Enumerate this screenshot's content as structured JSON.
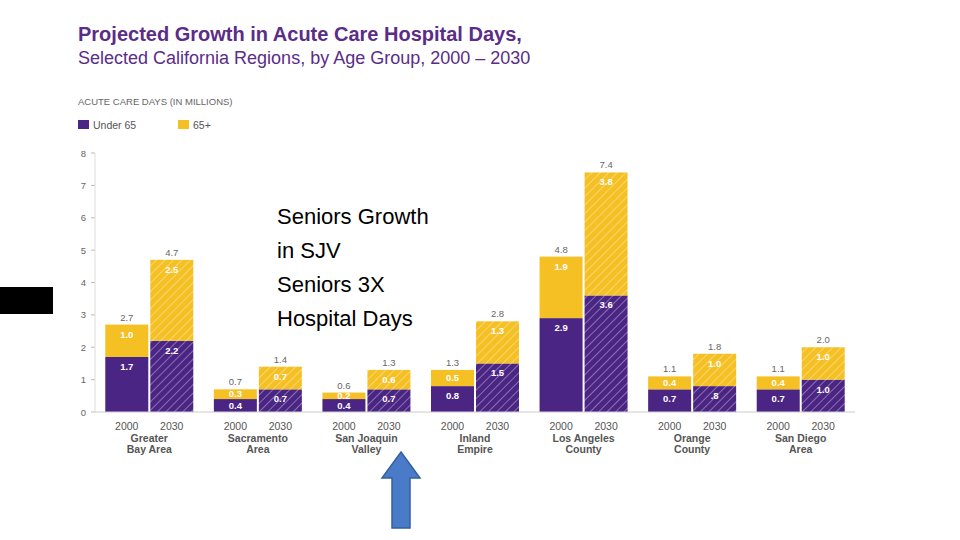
{
  "chart_data": {
    "type": "bar",
    "title": "Projected Growth in Acute Care Hospital Days,",
    "subtitle": "Selected California Regions, by Age Group, 2000 – 2030",
    "y_label": "ACUTE CARE DAYS (IN MILLIONS)",
    "categories": [
      "2000",
      "2030",
      "2000",
      "2030",
      "2000",
      "2030",
      "2000",
      "2030",
      "2000",
      "2030",
      "2000",
      "2030",
      "2000",
      "2030"
    ],
    "group_labels": [
      [
        "Greater",
        "Bay Area"
      ],
      [
        "Sacramento",
        "Area"
      ],
      [
        "San Joaquin",
        "Valley"
      ],
      [
        "Inland",
        "Empire"
      ],
      [
        "Los Angeles",
        "County"
      ],
      [
        "Orange",
        "County"
      ],
      [
        "San Diego",
        "Area"
      ]
    ],
    "series": [
      {
        "name": "Under 65",
        "color": "#4a2584",
        "values": [
          1.7,
          2.2,
          0.4,
          0.7,
          0.4,
          0.7,
          0.8,
          1.5,
          2.9,
          3.6,
          0.7,
          0.8,
          0.7,
          1.0
        ],
        "value_labels": [
          "1.7",
          "2.2",
          "0.4",
          "0.7",
          "0.4",
          "0.7",
          "0.8",
          "1.5",
          "2.9",
          "3.6",
          "0.7",
          ".8",
          "0.7",
          "1.0"
        ]
      },
      {
        "name": "65+",
        "color": "#f5c024",
        "values": [
          1.0,
          2.5,
          0.3,
          0.7,
          0.2,
          0.6,
          0.5,
          1.3,
          1.9,
          3.8,
          0.4,
          1.0,
          0.4,
          1.0
        ],
        "value_labels": [
          "1.0",
          "2.5",
          "0.3",
          "0.7",
          "0.2",
          "0.6",
          "0.5",
          "1.3",
          "1.9",
          "3.8",
          "0.4",
          "1.0",
          "0.4",
          "1.0"
        ]
      }
    ],
    "totals": [
      2.7,
      4.7,
      0.7,
      1.4,
      0.6,
      1.3,
      1.3,
      2.8,
      4.8,
      7.4,
      1.1,
      1.8,
      1.1,
      2.0
    ],
    "total_labels": [
      "2.7",
      "4.7",
      "0.7",
      "1.4",
      "0.6",
      "1.3",
      "1.3",
      "2.8",
      "4.8",
      "7.4",
      "1.1",
      "1.8",
      "1.1",
      "2.0"
    ],
    "ylim": [
      0,
      8
    ],
    "yticks": [
      0,
      1,
      2,
      3,
      4,
      5,
      6,
      7,
      8
    ],
    "stacked": true,
    "data_labels": true,
    "grid": false,
    "annotation": [
      "Seniors Growth",
      "in SJV",
      "Seniors 3X",
      "Hospital Days"
    ]
  }
}
